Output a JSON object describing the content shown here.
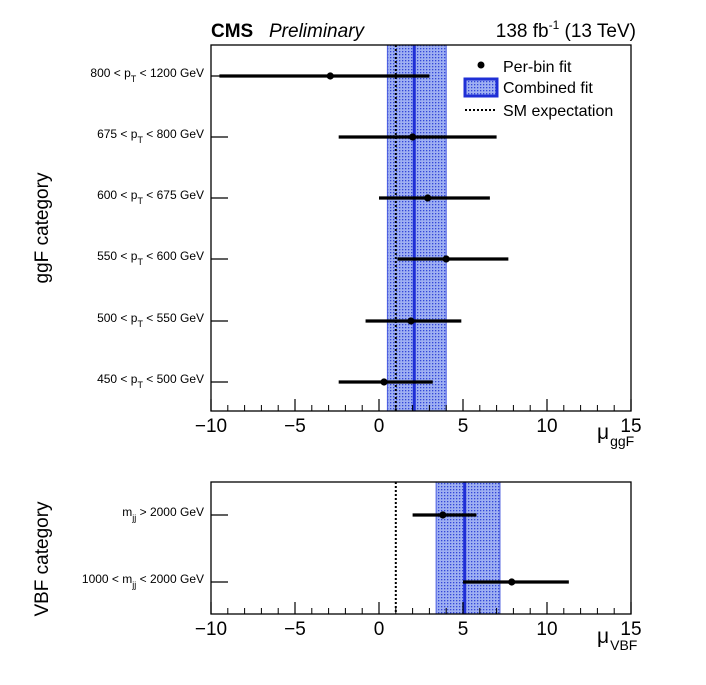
{
  "header": {
    "experiment": "CMS",
    "status": "Preliminary",
    "lumi_value": "138 fb",
    "lumi_exp": "-1",
    "energy": " (13 TeV)"
  },
  "legend": {
    "per_bin": "Per-bin fit",
    "combined": "Combined fit",
    "sm": "SM expectation"
  },
  "colors": {
    "combined_line": "#1f2fd6",
    "band_fill": "#9fb0f2",
    "points": "#000000"
  },
  "chart_data": [
    {
      "type": "scatter",
      "name": "ggF",
      "ylabel": "ggF category",
      "xlabel": "μ",
      "xlabel_sub": "ggF",
      "xlim": [
        -10,
        15
      ],
      "xticks": [
        -10,
        -5,
        0,
        5,
        10,
        15
      ],
      "xtick_labels": [
        "−10",
        "−5",
        "0",
        "5",
        "10",
        "15"
      ],
      "sm_expectation": 1.0,
      "combined": {
        "value": 2.1,
        "low": 0.5,
        "high": 4.0
      },
      "bins": [
        {
          "label_pre": "800 < p",
          "label_sub": "T",
          "label_post": " < 1200 GeV",
          "value": -2.9,
          "low": -9.5,
          "high": 3.0
        },
        {
          "label_pre": "675 < p",
          "label_sub": "T",
          "label_post": " < 800 GeV",
          "value": 2.0,
          "low": -2.4,
          "high": 7.0
        },
        {
          "label_pre": "600 < p",
          "label_sub": "T",
          "label_post": " < 675 GeV",
          "value": 2.9,
          "low": 0.0,
          "high": 6.6
        },
        {
          "label_pre": "550 < p",
          "label_sub": "T",
          "label_post": " < 600 GeV",
          "value": 4.0,
          "low": 1.1,
          "high": 7.7
        },
        {
          "label_pre": "500 < p",
          "label_sub": "T",
          "label_post": " < 550 GeV",
          "value": 1.9,
          "low": -0.8,
          "high": 4.9
        },
        {
          "label_pre": "450 < p",
          "label_sub": "T",
          "label_post": " < 500 GeV",
          "value": 0.3,
          "low": -2.4,
          "high": 3.2
        }
      ]
    },
    {
      "type": "scatter",
      "name": "VBF",
      "ylabel": "VBF category",
      "xlabel": "μ",
      "xlabel_sub": "VBF",
      "xlim": [
        -10,
        15
      ],
      "xticks": [
        -10,
        -5,
        0,
        5,
        10,
        15
      ],
      "xtick_labels": [
        "−10",
        "−5",
        "0",
        "5",
        "10",
        "15"
      ],
      "sm_expectation": 1.0,
      "combined": {
        "value": 5.1,
        "low": 3.4,
        "high": 7.2
      },
      "bins": [
        {
          "label_pre": "m",
          "label_sub": "jj",
          "label_post": " > 2000 GeV",
          "value": 3.8,
          "low": 2.0,
          "high": 5.8
        },
        {
          "label_pre": "1000 < m",
          "label_sub": "jj",
          "label_post": " < 2000 GeV",
          "value": 7.9,
          "low": 5.0,
          "high": 11.3
        }
      ]
    }
  ]
}
